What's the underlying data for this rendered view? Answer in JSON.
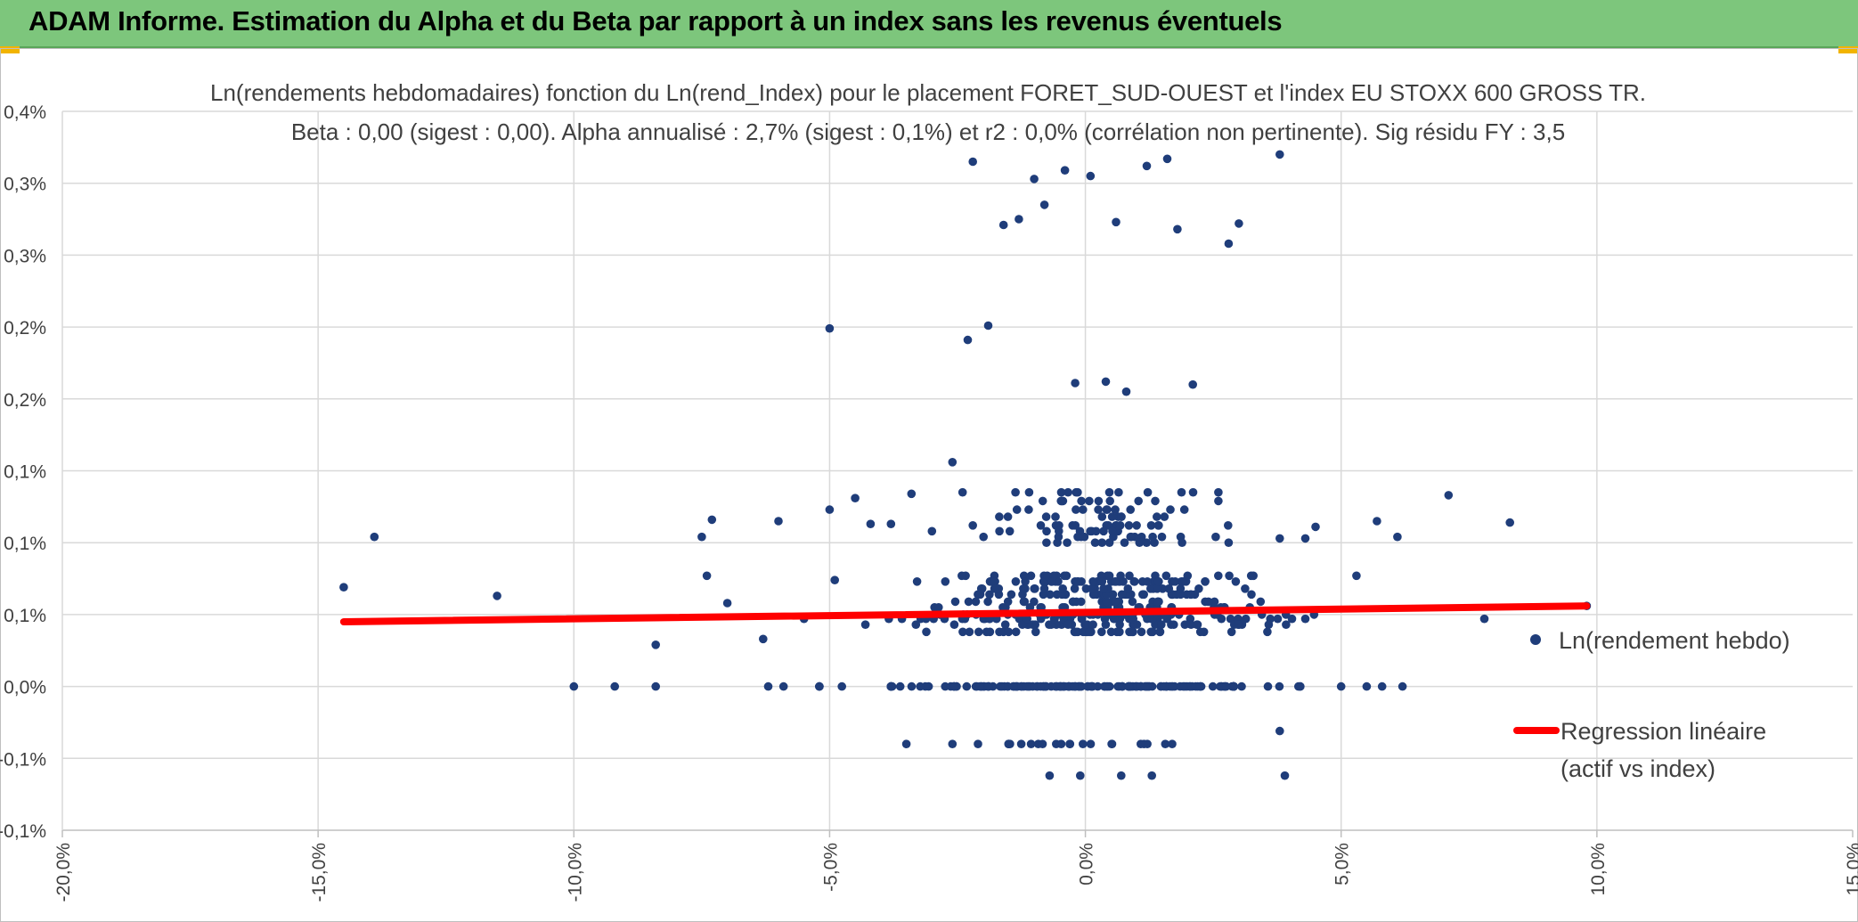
{
  "banner": {
    "title": "ADAM Informe. Estimation du Alpha et du Beta par rapport à un index sans les revenus éventuels",
    "color": "#7dc67c"
  },
  "chart_data": {
    "type": "scatter",
    "title": "Ln(rendements hebdomadaires) fonction du Ln(rend_Index) pour le placement FORET_SUD-OUEST et l'index EU STOXX 600 GROSS TR.",
    "subtitle": "Beta : 0,00 (sigest : 0,00). Alpha annualisé : 2,7% (sigest : 0,1%) et r2 : 0,0% (corrélation non pertinente). Sig résidu FY : 3,5",
    "xlabel": "",
    "ylabel": "",
    "xlim": [
      -20,
      15
    ],
    "ylim": [
      -0.1,
      0.4
    ],
    "grid": true,
    "legend_position": "right",
    "x_ticks": [
      {
        "value": -20,
        "label": "-20,0%"
      },
      {
        "value": -15,
        "label": "-15,0%"
      },
      {
        "value": -10,
        "label": "-10,0%"
      },
      {
        "value": -5,
        "label": "-5,0%"
      },
      {
        "value": 0,
        "label": "0,0%"
      },
      {
        "value": 5,
        "label": "5,0%"
      },
      {
        "value": 10,
        "label": "10,0%"
      },
      {
        "value": 15,
        "label": "15,0%"
      }
    ],
    "y_ticks": [
      {
        "value": 0.4,
        "label": "0,4%"
      },
      {
        "value": 0.35,
        "label": "0,3%"
      },
      {
        "value": 0.3,
        "label": "0,3%"
      },
      {
        "value": 0.25,
        "label": "0,2%"
      },
      {
        "value": 0.2,
        "label": "0,2%"
      },
      {
        "value": 0.15,
        "label": "0,1%"
      },
      {
        "value": 0.1,
        "label": "0,1%"
      },
      {
        "value": 0.05,
        "label": "0,1%"
      },
      {
        "value": 0.0,
        "label": "0,0%"
      },
      {
        "value": -0.05,
        "label": "-0,1%"
      },
      {
        "value": -0.1,
        "label": "-0,1%"
      }
    ],
    "series": [
      {
        "name": "Ln(rendement hebdo)",
        "type": "scatter",
        "color": "#1f3d7a",
        "seed": 7,
        "points": [
          [
            -14.5,
            0.069
          ],
          [
            -13.9,
            0.104
          ],
          [
            -11.5,
            0.063
          ],
          [
            -8.4,
            0.029
          ],
          [
            -7.5,
            0.104
          ],
          [
            -7.3,
            0.116
          ],
          [
            -7.4,
            0.077
          ],
          [
            -7.0,
            0.058
          ],
          [
            -6.0,
            0.115
          ],
          [
            -4.9,
            0.074
          ],
          [
            -4.5,
            0.131
          ],
          [
            -5.0,
            0.123
          ],
          [
            -5.5,
            0.047
          ],
          [
            -6.3,
            0.033
          ],
          [
            -4.2,
            0.113
          ],
          [
            -3.8,
            0.113
          ],
          [
            -3.4,
            0.134
          ],
          [
            -3.0,
            0.108
          ],
          [
            -2.6,
            0.156
          ],
          [
            -2.4,
            0.135
          ],
          [
            -2.3,
            0.241
          ],
          [
            -2.2,
            0.365
          ],
          [
            -1.9,
            0.251
          ],
          [
            -1.6,
            0.321
          ],
          [
            -1.3,
            0.325
          ],
          [
            -1.0,
            0.353
          ],
          [
            -0.8,
            0.335
          ],
          [
            -0.4,
            0.359
          ],
          [
            0.1,
            0.355
          ],
          [
            0.6,
            0.323
          ],
          [
            1.2,
            0.362
          ],
          [
            1.6,
            0.367
          ],
          [
            1.8,
            0.318
          ],
          [
            2.8,
            0.308
          ],
          [
            3.0,
            0.322
          ],
          [
            3.8,
            0.37
          ],
          [
            -0.2,
            0.211
          ],
          [
            0.4,
            0.212
          ],
          [
            0.8,
            0.205
          ],
          [
            2.1,
            0.21
          ],
          [
            -5.0,
            0.249
          ],
          [
            5.7,
            0.115
          ],
          [
            6.1,
            0.104
          ],
          [
            7.1,
            0.133
          ],
          [
            8.3,
            0.114
          ],
          [
            7.8,
            0.047
          ],
          [
            9.8,
            0.056
          ],
          [
            3.8,
            0.103
          ],
          [
            4.3,
            0.103
          ],
          [
            4.5,
            0.111
          ],
          [
            5.3,
            0.077
          ],
          [
            3.8,
            -0.031
          ],
          [
            3.9,
            -0.062
          ],
          [
            -10.0,
            0.0
          ],
          [
            -9.2,
            0.0
          ],
          [
            -8.4,
            0.0
          ],
          [
            -6.2,
            0.0
          ],
          [
            -5.9,
            0.0
          ],
          [
            5.0,
            0.0
          ],
          [
            5.5,
            0.0
          ],
          [
            5.8,
            0.0
          ],
          [
            6.2,
            0.0
          ],
          [
            -3.5,
            -0.04
          ],
          [
            -2.6,
            -0.04
          ],
          [
            -2.1,
            -0.04
          ],
          [
            -1.5,
            -0.04
          ],
          [
            -0.7,
            -0.062
          ],
          [
            -0.1,
            -0.062
          ],
          [
            0.7,
            -0.062
          ],
          [
            1.3,
            -0.062
          ]
        ],
        "clusters": [
          {
            "count": 130,
            "x_center": 0.0,
            "x_spread": 1.9,
            "y_levels": [
              0.0
            ],
            "x_min": -3.8,
            "x_max": 2.9
          },
          {
            "count": 40,
            "x_center": 0.0,
            "x_spread": 2.5,
            "y_levels": [
              0.0
            ],
            "x_min": -5.2,
            "x_max": 4.2
          },
          {
            "count": 120,
            "x_center": 0.2,
            "x_spread": 1.7,
            "y_levels": [
              0.038,
              0.043,
              0.047
            ],
            "x_min": -4.3,
            "x_max": 4.3
          },
          {
            "count": 140,
            "x_center": 0.2,
            "x_spread": 1.6,
            "y_levels": [
              0.05,
              0.055,
              0.059,
              0.064
            ],
            "x_min": -4.4,
            "x_max": 4.5
          },
          {
            "count": 90,
            "x_center": 0.2,
            "x_spread": 1.5,
            "y_levels": [
              0.068,
              0.073,
              0.077
            ],
            "x_min": -4.2,
            "x_max": 4.2
          },
          {
            "count": 55,
            "x_center": 0.4,
            "x_spread": 1.1,
            "y_levels": [
              0.1,
              0.104,
              0.108,
              0.112
            ],
            "x_min": -2.2,
            "x_max": 2.8
          },
          {
            "count": 45,
            "x_center": 0.5,
            "x_spread": 0.9,
            "y_levels": [
              0.118,
              0.123,
              0.129,
              0.135
            ],
            "x_min": -1.9,
            "x_max": 2.6
          },
          {
            "count": 20,
            "x_center": 0.0,
            "x_spread": 1.2,
            "y_levels": [
              -0.04
            ],
            "x_min": -1.5,
            "x_max": 2.9
          }
        ]
      },
      {
        "name": "Regression linéaire (actif vs index)",
        "type": "line",
        "color": "#ff0000",
        "x": [
          -14.5,
          9.8
        ],
        "y": [
          0.045,
          0.056
        ]
      }
    ]
  },
  "legend": {
    "scatter_label": "Ln(rendement hebdo)",
    "line_label_1": "Regression linéaire",
    "line_label_2": "(actif vs index)"
  }
}
